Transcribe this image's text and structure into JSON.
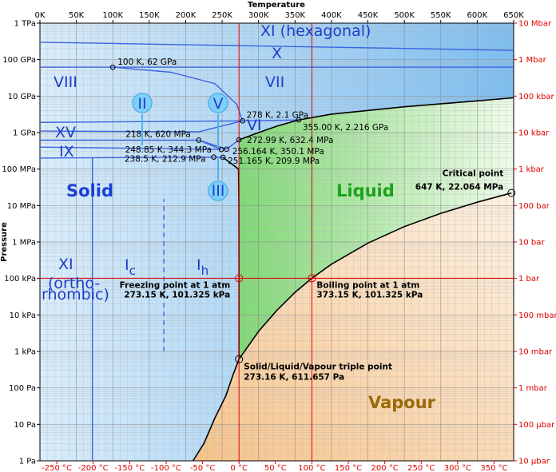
{
  "chart_data": {
    "type": "phase-diagram",
    "title": "",
    "xlabel": "Temperature",
    "ylabel": "Pressure",
    "x_unit": "K",
    "xlim_K": [
      0,
      650
    ],
    "ylim_Pa_log10": [
      0,
      12
    ],
    "y_scale": "log",
    "grid": "on (minor log grid)",
    "x_ticks_top": [
      "0K",
      "50K",
      "100K",
      "150K",
      "200K",
      "250K",
      "300K",
      "350K",
      "400K",
      "450K",
      "500K",
      "550K",
      "600K",
      "650K"
    ],
    "x_ticks_bottom": [
      "-250 °C",
      "-200 °C",
      "-150 °C",
      "-100 °C",
      "-50 °C",
      "0 °C",
      "50 °C",
      "100 °C",
      "150 °C",
      "200 °C",
      "250 °C",
      "300 °C",
      "350 °C"
    ],
    "y_ticks_left": [
      "1 TPa",
      "100 GPa",
      "10 GPa",
      "1 GPa",
      "100 MPa",
      "10 MPa",
      "1 MPa",
      "100 kPa",
      "10 kPa",
      "1 kPa",
      "100 Pa",
      "10 Pa",
      "1 Pa"
    ],
    "y_ticks_right": [
      "10 Mbar",
      "1 Mbar",
      "100 kbar",
      "10 kbar",
      "1 kbar",
      "100 bar",
      "10 bar",
      "1 bar",
      "100 mbar",
      "10 mbar",
      "1 mbar",
      "100 μbar",
      "10 μbar"
    ],
    "phases": {
      "solid": "Solid",
      "liquid": "Liquid",
      "vapour": "Vapour",
      "ice_XI_hex": "XI (hexagonal)",
      "ice_X": "X",
      "ice_VIII": "VIII",
      "ice_VII": "VII",
      "ice_II": "II",
      "ice_V": "V",
      "ice_VI": "VI",
      "ice_XV": "XV",
      "ice_IX": "IX",
      "ice_III": "III",
      "ice_XI_ortho": "XI",
      "ice_XI_ortho_sub1": "(ortho-",
      "ice_XI_ortho_sub2": "rhombic)",
      "ice_Ic": "I",
      "ice_Ic_sub": "c",
      "ice_Ih": "I",
      "ice_Ih_sub": "h"
    },
    "points": [
      {
        "T_K": 100,
        "P_Pa": 62000000000.0,
        "label": "100 K, 62 GPa"
      },
      {
        "T_K": 278,
        "P_Pa": 2100000000.0,
        "label": "278 K, 2.1 GPa"
      },
      {
        "T_K": 355,
        "P_Pa": 2216000000.0,
        "label": "355.00 K, 2.216 GPa"
      },
      {
        "T_K": 218,
        "P_Pa": 620000000.0,
        "label": "218 K, 620 MPa"
      },
      {
        "T_K": 272.99,
        "P_Pa": 632400000.0,
        "label": "272.99 K, 632.4 MPa"
      },
      {
        "T_K": 248.85,
        "P_Pa": 344300000.0,
        "label": "248.85 K, 344.3 MPa"
      },
      {
        "T_K": 256.164,
        "P_Pa": 350100000.0,
        "label": "256.164 K, 350.1 MPa"
      },
      {
        "T_K": 238.5,
        "P_Pa": 212900000.0,
        "label": "238.5 K, 212.9 MPa"
      },
      {
        "T_K": 251.165,
        "P_Pa": 209900000.0,
        "label": "251.165 K, 209.9 MPa"
      },
      {
        "T_K": 647,
        "P_Pa": 22064000.0,
        "label": "647 K, 22.064 MPa",
        "name": "Critical point"
      },
      {
        "T_K": 273.16,
        "P_Pa": 611.657,
        "label": "273.16 K, 611.657 Pa",
        "name": "Solid/Liquid/Vapour triple point"
      },
      {
        "T_K": 273.15,
        "P_Pa": 101325,
        "label": "273.15 K, 101.325 kPa",
        "name": "Freezing point at 1 atm"
      },
      {
        "T_K": 373.15,
        "P_Pa": 101325,
        "label": "373.15 K, 101.325 kPa",
        "name": "Boiling point at 1 atm"
      }
    ],
    "curves": {
      "boiling": [
        [
          273.16,
          611.657
        ],
        [
          300,
          3540
        ],
        [
          325,
          13300
        ],
        [
          350,
          41700
        ],
        [
          373.15,
          101325
        ],
        [
          400,
          245800
        ],
        [
          450,
          932000
        ],
        [
          500,
          2640000
        ],
        [
          550,
          6120000
        ],
        [
          600,
          12300000
        ],
        [
          647,
          22064000
        ]
      ],
      "sublimation": [
        [
          210,
          1
        ],
        [
          225,
          3
        ],
        [
          240,
          15
        ],
        [
          255,
          60
        ],
        [
          265,
          230
        ],
        [
          273.16,
          611.657
        ]
      ],
      "melting": [
        [
          273.16,
          611.657
        ],
        [
          273.15,
          101325
        ],
        [
          273.0,
          10000000
        ],
        [
          272.5,
          100000000
        ],
        [
          251.165,
          209900000
        ]
      ],
      "liquid_VI": [
        [
          272.99,
          632400000
        ],
        [
          300,
          1000000000
        ],
        [
          325,
          1500000000
        ],
        [
          355,
          2216000000
        ]
      ],
      "liquid_VII": [
        [
          355,
          2216000000
        ],
        [
          400,
          3200000000
        ],
        [
          500,
          5100000000
        ],
        [
          600,
          7400000000
        ],
        [
          650,
          9000000000
        ]
      ]
    },
    "colors": {
      "ice": "#a9d6f4",
      "liquid": "#a6e79b",
      "vapour": "#fbd9ad",
      "ice_label": "#1c3fcc",
      "liquid_label": "#1aa21a",
      "vapour_label": "#9b6a08",
      "reference_red": "#e00000",
      "blue_lines": "#3b64e0"
    }
  }
}
